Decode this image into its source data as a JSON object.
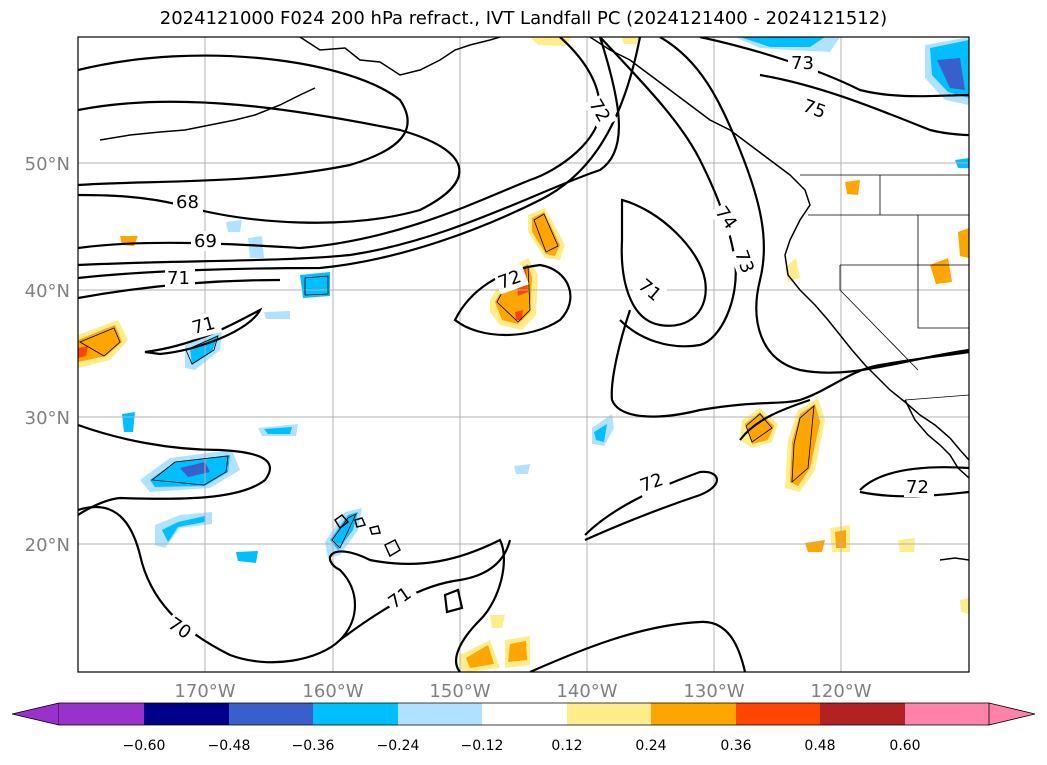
{
  "title": "2024121000 F024 200 hPa refract., IVT Landfall PC (2024121400 - 2024121512)",
  "axes": {
    "lon_labels": [
      "170°W",
      "160°W",
      "150°W",
      "140°W",
      "130°W",
      "120°W"
    ],
    "lat_labels": [
      "50°N",
      "40°N",
      "30°N",
      "20°N"
    ]
  },
  "contour_labels": [
    "73",
    "75",
    "72",
    "68",
    "69",
    "74",
    "73",
    "71",
    "72",
    "71",
    "71",
    "72",
    "72",
    "71",
    "70"
  ],
  "colorbar": {
    "ticks": [
      "−0.60",
      "−0.48",
      "−0.36",
      "−0.24",
      "−0.12",
      "0.12",
      "0.24",
      "0.36",
      "0.48",
      "0.60"
    ],
    "colors": [
      "#9932cc",
      "#00008b",
      "#3a5fcd",
      "#00bfff",
      "#b0e2ff",
      "#ffffff",
      "#ffec8b",
      "#ffa500",
      "#ff4500",
      "#b22222",
      "#ff82ab"
    ]
  },
  "colors": {
    "contour": "#000000",
    "grid": "#b0b0b0",
    "coast": "#000000"
  }
}
